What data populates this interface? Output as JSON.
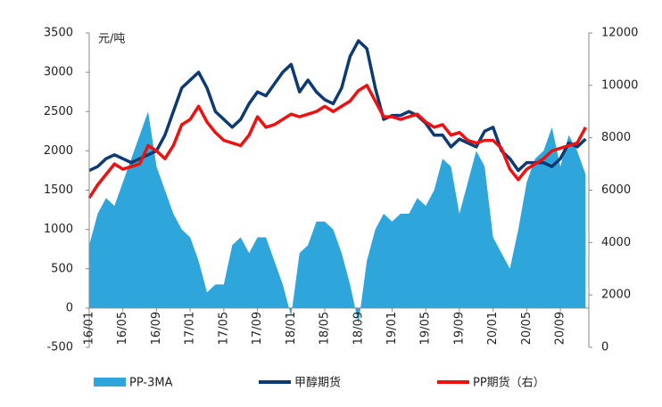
{
  "chart_data": {
    "type": "line",
    "annotations": [
      "元/吨"
    ],
    "categories": [
      "16/01",
      null,
      null,
      null,
      "16/05",
      null,
      null,
      null,
      "16/09",
      null,
      null,
      null,
      "17/01",
      null,
      null,
      null,
      "17/05",
      null,
      null,
      null,
      "17/09",
      null,
      null,
      null,
      "18/01",
      null,
      null,
      null,
      "18/05",
      null,
      null,
      null,
      "18/09",
      null,
      null,
      null,
      "19/01",
      null,
      null,
      null,
      "19/05",
      null,
      null,
      null,
      "19/09",
      null,
      null,
      null,
      "20/01",
      null,
      null,
      null,
      "20/05",
      null,
      null,
      null,
      "20/09",
      null,
      null,
      null
    ],
    "series": [
      {
        "name": "PP-3MA",
        "type": "area",
        "color": "#2ea6dc",
        "values": [
          800,
          1200,
          1400,
          1300,
          1600,
          1900,
          2200,
          2500,
          1800,
          1500,
          1200,
          1000,
          900,
          600,
          200,
          300,
          300,
          800,
          900,
          700,
          900,
          900,
          600,
          300,
          -100,
          700,
          800,
          1100,
          1100,
          1000,
          700,
          300,
          -200,
          600,
          1000,
          1200,
          1100,
          1200,
          1200,
          1400,
          1300,
          1500,
          1900,
          1800,
          1200,
          1600,
          2000,
          1800,
          900,
          700,
          500,
          1000,
          1600,
          1900,
          2000,
          2300,
          1800,
          2200,
          2000,
          1700
        ]
      },
      {
        "name": "甲醇期货",
        "type": "line",
        "color": "#0d3a73",
        "values": [
          1750,
          1800,
          1900,
          1950,
          1900,
          1850,
          1900,
          1950,
          2000,
          2200,
          2500,
          2800,
          2900,
          3000,
          2800,
          2500,
          2400,
          2300,
          2400,
          2600,
          2750,
          2700,
          2850,
          3000,
          3100,
          2750,
          2900,
          2750,
          2650,
          2600,
          2800,
          3200,
          3400,
          3300,
          2800,
          2400,
          2450,
          2450,
          2500,
          2450,
          2350,
          2200,
          2200,
          2050,
          2150,
          2100,
          2050,
          2250,
          2300,
          2000,
          1900,
          1750,
          1850,
          1850,
          1850,
          1800,
          1900,
          2100,
          2050,
          2150
        ]
      },
      {
        "name": "PP期货（右）",
        "type": "line",
        "axis": "y2",
        "color": "#ee1111",
        "values": [
          5700,
          6200,
          6600,
          7000,
          6800,
          6900,
          7000,
          7700,
          7500,
          7200,
          7700,
          8500,
          8700,
          9200,
          8600,
          8200,
          7900,
          7800,
          7700,
          8100,
          8800,
          8400,
          8500,
          8700,
          8900,
          8800,
          8900,
          9000,
          9200,
          9000,
          9200,
          9400,
          9800,
          10000,
          9400,
          8800,
          8800,
          8700,
          8800,
          8900,
          8600,
          8400,
          8500,
          8100,
          8200,
          7900,
          7800,
          7900,
          7900,
          7600,
          6800,
          6400,
          6800,
          7000,
          7200,
          7500,
          7600,
          7700,
          7800,
          8400
        ]
      }
    ],
    "ylim": [
      -500,
      3500
    ],
    "yticks": [
      -500,
      0,
      500,
      1000,
      1500,
      2000,
      2500,
      3000,
      3500
    ],
    "y2lim": [
      0,
      12000
    ],
    "y2ticks": [
      0,
      2000,
      4000,
      6000,
      8000,
      10000,
      12000
    ],
    "legend": "bottom"
  }
}
